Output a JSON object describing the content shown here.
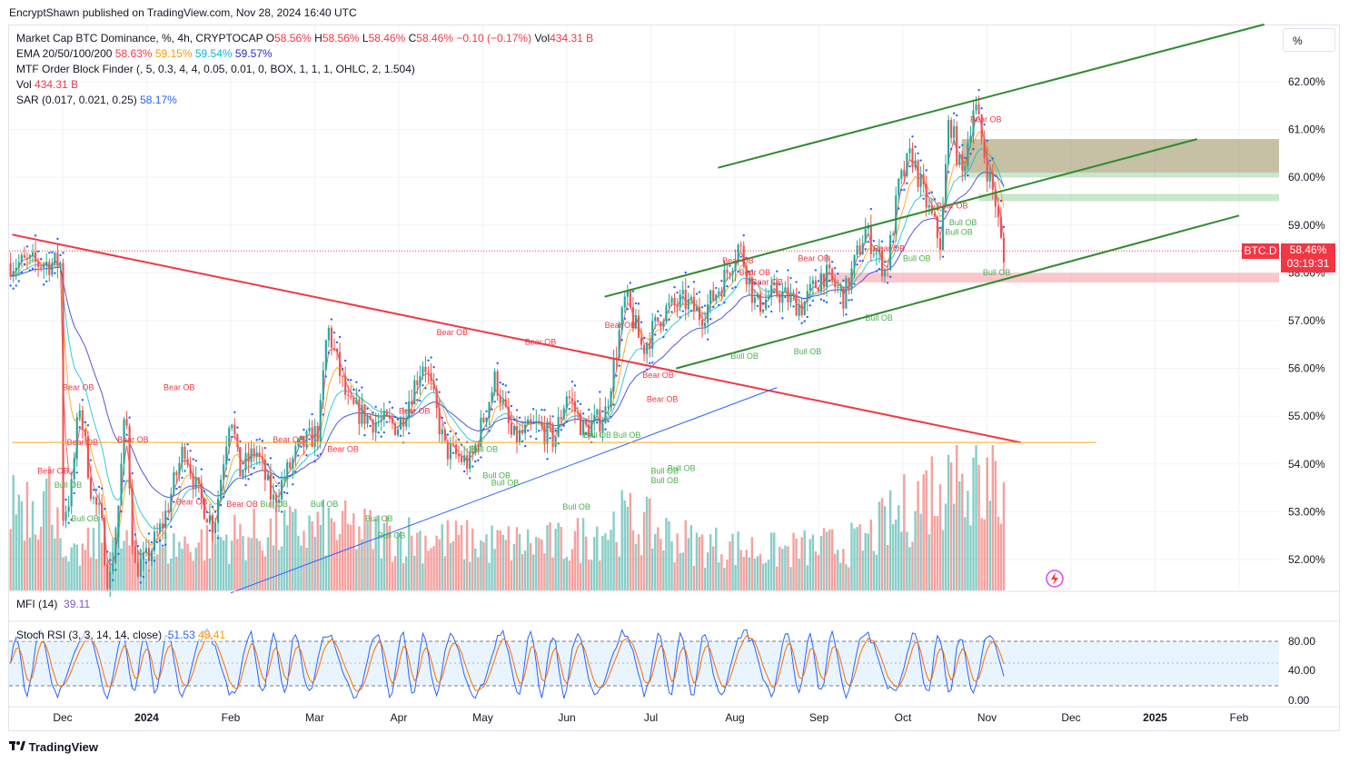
{
  "header": {
    "publisher": "EncryptShawn published on TradingView.com, Nov 28, 2024 16:40 UTC"
  },
  "legend": {
    "line1": {
      "title": "Market Cap BTC Dominance, %, 4h, CRYPTOCAP",
      "o_lbl": "O",
      "o": "58.56%",
      "h_lbl": "H",
      "h": "58.56%",
      "l_lbl": "L",
      "l": "58.46%",
      "c_lbl": "C",
      "c": "58.46%",
      "chg": "−0.10 (−0.17%)",
      "vol_lbl": "Vol",
      "vol": "434.31 B"
    },
    "line2": {
      "name": "EMA 20/50/100/200",
      "v1": "58.63%",
      "v2": "59.15%",
      "v3": "59.54%",
      "v4": "59.57%"
    },
    "line3": {
      "name": "MTF Order Block Finder (, 5, 0.3, 4, 4, 0.05, 0.01, 0, BOX, 1, 1, 1, OHLC, 2, 1.504)"
    },
    "line4": {
      "name": "Vol",
      "value": "434.31 B"
    },
    "line5": {
      "name": "SAR (0.017, 0.021, 0.25)",
      "value": "58.17%"
    }
  },
  "scale_mode": "%",
  "symbol_badge": "BTC.D",
  "last_price": "58.46%",
  "countdown": "03:19:31",
  "mfi": {
    "label": "MFI (14)",
    "value": "39.11"
  },
  "stoch": {
    "label": "Stoch RSI (3, 3, 14, 14, close)",
    "k": "51.53",
    "d": "48.41",
    "ticks": [
      "80.00",
      "40.00",
      "0.00"
    ]
  },
  "footer": {
    "brand": "TradingView"
  },
  "colors": {
    "up": "#26a69a",
    "down": "#ef5350",
    "trend_red": "#f23645",
    "channel_green": "#2e8b2e",
    "trend_blue": "#2962ff",
    "ob_bear": "#f23645",
    "ob_bull": "#4caf50"
  },
  "chart_data": {
    "type": "candlestick",
    "title": "Market Cap BTC Dominance, %, 4h, CRYPTOCAP",
    "ylabel": "%",
    "ylim": [
      51.3,
      62.7
    ],
    "yticks": [
      "62.00%",
      "61.00%",
      "60.00%",
      "59.00%",
      "58.00%",
      "57.00%",
      "56.00%",
      "55.00%",
      "54.00%",
      "53.00%",
      "52.00%"
    ],
    "xticks": [
      "Dec",
      "2024",
      "Feb",
      "Mar",
      "Apr",
      "May",
      "Jun",
      "Jul",
      "Aug",
      "Sep",
      "Oct",
      "Nov",
      "Dec",
      "2025",
      "Feb"
    ],
    "x_month_index": [
      0,
      1,
      2,
      3,
      4,
      5,
      6,
      7,
      8,
      9,
      10,
      11,
      12,
      13,
      14
    ],
    "price_path": [
      {
        "t": 0.0,
        "v": 52.9
      },
      {
        "t": 0.1,
        "v": 53.4
      },
      {
        "t": 0.2,
        "v": 55.3
      },
      {
        "t": 0.35,
        "v": 53.3
      },
      {
        "t": 0.45,
        "v": 52.9
      },
      {
        "t": 0.55,
        "v": 51.4
      },
      {
        "t": 0.65,
        "v": 52.8
      },
      {
        "t": 0.75,
        "v": 55.2
      },
      {
        "t": 0.85,
        "v": 51.8
      },
      {
        "t": 1.0,
        "v": 52.0
      },
      {
        "t": 1.2,
        "v": 52.8
      },
      {
        "t": 1.45,
        "v": 54.4
      },
      {
        "t": 1.6,
        "v": 53.4
      },
      {
        "t": 1.8,
        "v": 52.7
      },
      {
        "t": 2.0,
        "v": 55.2
      },
      {
        "t": 2.1,
        "v": 53.8
      },
      {
        "t": 2.3,
        "v": 54.3
      },
      {
        "t": 2.5,
        "v": 53.2
      },
      {
        "t": 2.8,
        "v": 54.3
      },
      {
        "t": 3.05,
        "v": 54.7
      },
      {
        "t": 3.15,
        "v": 56.9
      },
      {
        "t": 3.4,
        "v": 55.2
      },
      {
        "t": 3.7,
        "v": 54.9
      },
      {
        "t": 4.0,
        "v": 54.8
      },
      {
        "t": 4.3,
        "v": 56.2
      },
      {
        "t": 4.55,
        "v": 54.3
      },
      {
        "t": 4.85,
        "v": 54.0
      },
      {
        "t": 5.15,
        "v": 55.8
      },
      {
        "t": 5.35,
        "v": 54.5
      },
      {
        "t": 5.65,
        "v": 54.8
      },
      {
        "t": 5.85,
        "v": 54.5
      },
      {
        "t": 6.0,
        "v": 55.5
      },
      {
        "t": 6.2,
        "v": 54.7
      },
      {
        "t": 6.45,
        "v": 55.0
      },
      {
        "t": 6.7,
        "v": 57.5
      },
      {
        "t": 6.9,
        "v": 56.4
      },
      {
        "t": 7.15,
        "v": 57.2
      },
      {
        "t": 7.4,
        "v": 57.4
      },
      {
        "t": 7.6,
        "v": 57.1
      },
      {
        "t": 7.85,
        "v": 57.8
      },
      {
        "t": 8.05,
        "v": 58.6
      },
      {
        "t": 8.25,
        "v": 57.3
      },
      {
        "t": 8.5,
        "v": 57.6
      },
      {
        "t": 8.8,
        "v": 57.3
      },
      {
        "t": 9.05,
        "v": 58.0
      },
      {
        "t": 9.3,
        "v": 57.5
      },
      {
        "t": 9.55,
        "v": 58.9
      },
      {
        "t": 9.8,
        "v": 58.0
      },
      {
        "t": 9.95,
        "v": 59.8
      },
      {
        "t": 10.1,
        "v": 60.5
      },
      {
        "t": 10.25,
        "v": 59.6
      },
      {
        "t": 10.45,
        "v": 58.6
      },
      {
        "t": 10.55,
        "v": 61.3
      },
      {
        "t": 10.7,
        "v": 60.0
      },
      {
        "t": 10.85,
        "v": 61.6
      },
      {
        "t": 11.0,
        "v": 60.2
      },
      {
        "t": 11.1,
        "v": 59.5
      },
      {
        "t": 11.2,
        "v": 58.2
      }
    ],
    "volume_path": [
      {
        "t": 0.0,
        "v": 0.15
      },
      {
        "t": 0.5,
        "v": 0.35
      },
      {
        "t": 1.0,
        "v": 0.25
      },
      {
        "t": 1.5,
        "v": 0.3
      },
      {
        "t": 2.1,
        "v": 0.35
      },
      {
        "t": 3.2,
        "v": 0.4
      },
      {
        "t": 4.0,
        "v": 0.35
      },
      {
        "t": 5.0,
        "v": 0.3
      },
      {
        "t": 6.0,
        "v": 0.3
      },
      {
        "t": 6.7,
        "v": 0.45
      },
      {
        "t": 7.5,
        "v": 0.3
      },
      {
        "t": 8.5,
        "v": 0.25
      },
      {
        "t": 9.5,
        "v": 0.3
      },
      {
        "t": 10.0,
        "v": 0.5
      },
      {
        "t": 10.5,
        "v": 0.75
      },
      {
        "t": 11.2,
        "v": 0.6
      }
    ],
    "trend_lines": [
      {
        "name": "descending red",
        "from": {
          "t": -0.6,
          "v": 58.8
        },
        "to": {
          "t": 11.4,
          "v": 54.45
        }
      },
      {
        "name": "channel top",
        "from": {
          "t": 7.8,
          "v": 60.2
        },
        "to": {
          "t": 14.3,
          "v": 63.2
        }
      },
      {
        "name": "channel mid",
        "from": {
          "t": 6.45,
          "v": 57.5
        },
        "to": {
          "t": 13.5,
          "v": 60.8
        }
      },
      {
        "name": "channel bottom",
        "from": {
          "t": 7.3,
          "v": 56.0
        },
        "to": {
          "t": 14.0,
          "v": 59.2
        }
      },
      {
        "name": "ascending blue",
        "from": {
          "t": 2.0,
          "v": 51.3
        },
        "to": {
          "t": 8.5,
          "v": 55.6
        }
      },
      {
        "name": "horizontal orange",
        "from": {
          "t": -0.6,
          "v": 54.45
        },
        "to": {
          "t": 12.3,
          "v": 54.45
        }
      }
    ],
    "order_blocks": [
      {
        "type": "bear",
        "from_t": 10.7,
        "v1": 60.8,
        "v2": 60.1
      },
      {
        "type": "bull",
        "from_t": 10.7,
        "v1": 60.8,
        "v2": 60.0
      },
      {
        "type": "bull",
        "from_t": 10.9,
        "v1": 59.65,
        "v2": 59.5
      },
      {
        "type": "bear",
        "from_t": 9.0,
        "v1": 58.0,
        "v2": 57.8
      }
    ],
    "ob_labels": [
      {
        "text": "Bear OB",
        "t": 0.0,
        "v": 55.55
      },
      {
        "text": "Bear OB",
        "t": 1.2,
        "v": 55.55
      },
      {
        "text": "Bear OB",
        "t": -0.3,
        "v": 53.8
      },
      {
        "text": "Bear OB",
        "t": 0.05,
        "v": 54.4
      },
      {
        "text": "Bear OB",
        "t": 0.65,
        "v": 54.45
      },
      {
        "text": "Bull OB",
        "t": -0.1,
        "v": 53.5
      },
      {
        "text": "Bull OB",
        "t": 0.1,
        "v": 52.8
      },
      {
        "text": "Bear OB",
        "t": 1.35,
        "v": 53.15
      },
      {
        "text": "Bear OB",
        "t": 1.95,
        "v": 53.1
      },
      {
        "text": "Bull OB",
        "t": 2.35,
        "v": 53.1
      },
      {
        "text": "Bear OB",
        "t": 2.5,
        "v": 54.45
      },
      {
        "text": "Bull OB",
        "t": 2.95,
        "v": 53.1
      },
      {
        "text": "Bear OB",
        "t": 3.15,
        "v": 54.25
      },
      {
        "text": "Bull OB",
        "t": 3.6,
        "v": 52.8
      },
      {
        "text": "Bull OB",
        "t": 3.75,
        "v": 52.45
      },
      {
        "text": "Bear OB",
        "t": 4.0,
        "v": 55.05
      },
      {
        "text": "Bear OB",
        "t": 4.45,
        "v": 56.7
      },
      {
        "text": "Bull OB",
        "t": 4.85,
        "v": 54.25
      },
      {
        "text": "Bull OB",
        "t": 5.0,
        "v": 53.7
      },
      {
        "text": "Bull OB",
        "t": 5.1,
        "v": 53.55
      },
      {
        "text": "Bear OB",
        "t": 5.5,
        "v": 56.5
      },
      {
        "text": "Bull OB",
        "t": 5.95,
        "v": 53.05
      },
      {
        "text": "Bear OB",
        "t": 6.45,
        "v": 56.85
      },
      {
        "text": "Bull OB",
        "t": 6.2,
        "v": 54.55
      },
      {
        "text": "Bull OB",
        "t": 6.55,
        "v": 54.55
      },
      {
        "text": "Bear OB",
        "t": 6.9,
        "v": 55.8
      },
      {
        "text": "Bear OB",
        "t": 6.95,
        "v": 55.3
      },
      {
        "text": "Bull OB",
        "t": 7.0,
        "v": 53.8
      },
      {
        "text": "Bull OB",
        "t": 7.2,
        "v": 53.85
      },
      {
        "text": "Bull OB",
        "t": 7.0,
        "v": 53.6
      },
      {
        "text": "Bear OB",
        "t": 7.85,
        "v": 58.2
      },
      {
        "text": "Bear OB",
        "t": 8.05,
        "v": 57.95
      },
      {
        "text": "Bear OB",
        "t": 8.2,
        "v": 57.75
      },
      {
        "text": "Bear OB",
        "t": 8.75,
        "v": 58.25
      },
      {
        "text": "Bull OB",
        "t": 8.7,
        "v": 56.3
      },
      {
        "text": "Bull OB",
        "t": 7.95,
        "v": 56.2
      },
      {
        "text": "Bull OB",
        "t": 9.55,
        "v": 57.0
      },
      {
        "text": "Bear OB",
        "t": 9.65,
        "v": 58.45
      },
      {
        "text": "Bull OB",
        "t": 10.0,
        "v": 58.25
      },
      {
        "text": "Bear OB",
        "t": 10.4,
        "v": 59.35
      },
      {
        "text": "Bull OB",
        "t": 10.55,
        "v": 59.0
      },
      {
        "text": "Bull OB",
        "t": 10.5,
        "v": 58.8
      },
      {
        "text": "Bear OB",
        "t": 10.8,
        "v": 61.15
      },
      {
        "text": "Bull OB",
        "t": 10.95,
        "v": 57.95
      }
    ],
    "stoch_rsi": {
      "k": 51.53,
      "d": 48.41,
      "upper": 80,
      "lower": 20,
      "range": [
        0,
        100
      ]
    },
    "mfi_value": 39.11
  }
}
